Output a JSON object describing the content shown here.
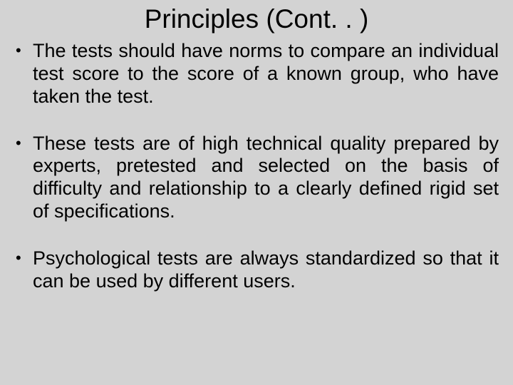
{
  "background_color": "#d3d3d3",
  "text_color": "#000000",
  "title": {
    "text": "Principles (Cont. . )",
    "font_family": "Arial",
    "font_size_pt": 28
  },
  "body": {
    "font_family": "Comic Sans MS",
    "font_size_pt": 20,
    "alignment": "justify"
  },
  "bullets": [
    "The tests should have norms to compare an individual test score to the score of a known group, who have taken the test.",
    "These tests are of high technical quality prepared by experts, pretested and selected on the basis of difficulty and relationship to a clearly defined rigid set of specifications.",
    "Psychological tests are always standardized so that it can be used by different users."
  ]
}
